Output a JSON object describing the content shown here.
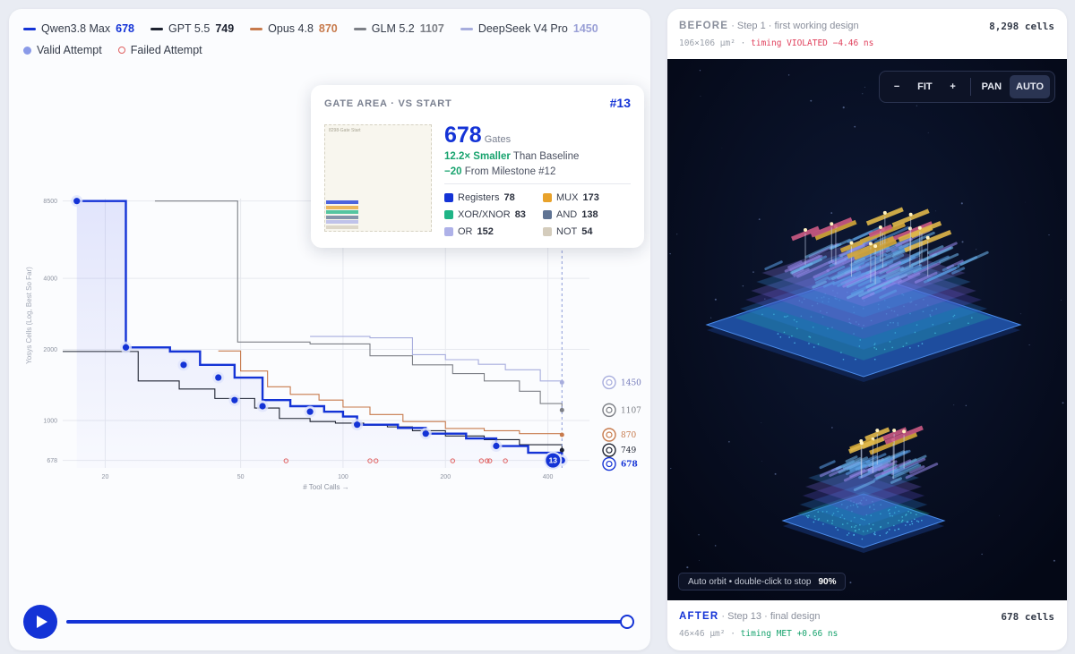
{
  "legend": {
    "models": [
      {
        "name": "Qwen3.8 Max",
        "value": "678",
        "color": "#1433d6"
      },
      {
        "name": "GPT 5.5",
        "value": "749",
        "color": "#1d2230"
      },
      {
        "name": "Opus 4.8",
        "value": "870",
        "color": "#c77a4c"
      },
      {
        "name": "GLM 5.2",
        "value": "1107",
        "color": "#7c7f86"
      },
      {
        "name": "DeepSeek V4 Pro",
        "value": "1450",
        "color": "#a7addd"
      }
    ],
    "valid_label": "Valid Attempt",
    "failed_label": "Failed Attempt"
  },
  "chart_data": {
    "type": "line",
    "title": "",
    "xlabel": "# Tool Calls →",
    "ylabel": "Yosys Cells (Log, Best So Far)",
    "x_scale": "log",
    "y_scale": "log",
    "xlim": [
      15,
      530
    ],
    "ylim": [
      630,
      8700
    ],
    "x_ticks": [
      20,
      50,
      100,
      200,
      400
    ],
    "y_ticks": [
      678,
      1000,
      2000,
      4000,
      8500
    ],
    "grid": true,
    "series": [
      {
        "name": "Qwen3.8 Max",
        "color": "#1433d6",
        "end_label": "678",
        "x": [
          16.5,
          23,
          31,
          38,
          43,
          48,
          58,
          70,
          80,
          88,
          100,
          110,
          145,
          175,
          230,
          282,
          350,
          440
        ],
        "y": [
          8500,
          2040,
          1960,
          1720,
          1720,
          1520,
          1220,
          1150,
          1150,
          1090,
          1040,
          960,
          930,
          880,
          840,
          780,
          730,
          678
        ]
      },
      {
        "name": "GPT 5.5",
        "color": "#1d2230",
        "end_label": "749",
        "x": [
          15,
          20,
          25,
          33,
          42,
          55,
          65,
          80,
          95,
          115,
          135,
          160,
          200,
          260,
          330,
          440
        ],
        "y": [
          1960,
          1960,
          1470,
          1360,
          1240,
          1130,
          1020,
          990,
          975,
          955,
          940,
          905,
          860,
          830,
          790,
          749
        ]
      },
      {
        "name": "Opus 4.8",
        "color": "#c77a4c",
        "end_label": "870",
        "x": [
          43,
          50,
          60,
          70,
          85,
          100,
          120,
          150,
          200,
          260,
          330,
          440
        ],
        "y": [
          1970,
          1620,
          1390,
          1290,
          1220,
          1140,
          1060,
          990,
          925,
          905,
          880,
          870
        ]
      },
      {
        "name": "GLM 5.2",
        "color": "#7c7f86",
        "end_label": "1107",
        "x": [
          28,
          47,
          49,
          80,
          120,
          160,
          210,
          260,
          330,
          380,
          440
        ],
        "y": [
          8500,
          8500,
          2150,
          2110,
          1880,
          1720,
          1580,
          1470,
          1330,
          1180,
          1107
        ]
      },
      {
        "name": "DeepSeek V4 Pro",
        "color": "#a7addd",
        "end_label": "1450",
        "x": [
          80,
          120,
          160,
          200,
          250,
          300,
          380,
          440
        ],
        "y": [
          2270,
          2240,
          1900,
          1810,
          1730,
          1640,
          1470,
          1450
        ]
      }
    ],
    "valid_attempts": {
      "x": [
        16.5,
        23,
        34,
        43,
        48,
        58,
        80,
        110,
        175,
        282,
        440
      ],
      "y": [
        8500,
        2040,
        1720,
        1520,
        1220,
        1150,
        1090,
        960,
        880,
        780,
        678
      ]
    },
    "failed_attempts": {
      "x": [
        68,
        120,
        125,
        210,
        255,
        265,
        270,
        300
      ],
      "y": [
        678,
        678,
        678,
        678,
        678,
        678,
        678,
        678
      ]
    }
  },
  "marker": {
    "label": "13"
  },
  "player": {
    "progress": 1.0
  },
  "tooltip": {
    "header": "GATE AREA · VS START",
    "milestone": "#13",
    "thumb_label": "8298-Gate Start",
    "gates": "678",
    "gates_label": "Gates",
    "smaller_strong": "12.2× Smaller",
    "smaller_rest": "Than Baseline",
    "delta_strong": "−20",
    "delta_rest": "From Milestone #12",
    "stats": [
      {
        "label": "Registers",
        "value": "78",
        "color": "#1433d6"
      },
      {
        "label": "MUX",
        "value": "173",
        "color": "#e8a22b"
      },
      {
        "label": "XOR/XNOR",
        "value": "83",
        "color": "#1fb486"
      },
      {
        "label": "AND",
        "value": "138",
        "color": "#5f7393"
      },
      {
        "label": "OR",
        "value": "152",
        "color": "#aeb1e8"
      },
      {
        "label": "NOT",
        "value": "54",
        "color": "#d4ccbc"
      }
    ]
  },
  "before": {
    "word": "BEFORE",
    "step": "· Step 1 · first working design",
    "area": "106×106 µm²",
    "timing": "timing VIOLATED −4.46 ns",
    "timing_color": "#e0405c",
    "cells": "8,298 cells"
  },
  "after": {
    "word": "AFTER",
    "step": "· Step 13 · final design",
    "area": "46×46 µm²",
    "timing": "timing MET +0.66 ns",
    "timing_color": "#18a36e",
    "cells": "678 cells"
  },
  "viewer": {
    "zoom_out": "−",
    "fit": "FIT",
    "zoom_in": "+",
    "pan": "PAN",
    "auto": "AUTO",
    "status": "Auto orbit • double-click to stop",
    "status_pct": "90%"
  }
}
